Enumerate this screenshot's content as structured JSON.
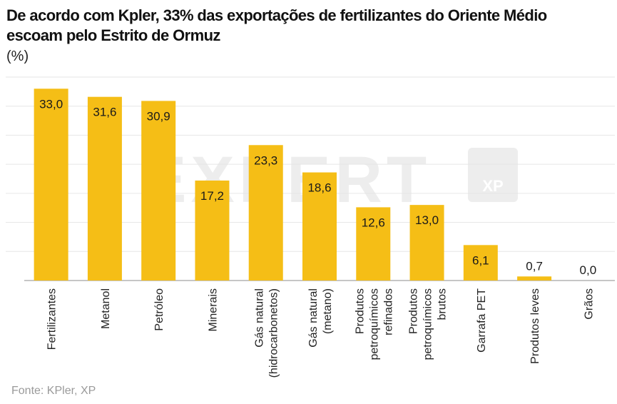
{
  "header": {
    "title": "De acordo com Kpler, 33% das exportações de fertilizantes do Oriente Médio escoam pelo Estrito de Ormuz",
    "unit": "(%)"
  },
  "footer": {
    "source": "Fonte: KPler, XP"
  },
  "watermark": {
    "text": "EXPERT XP"
  },
  "colors": {
    "bar": "#F5BE16",
    "grid": "#E6E6E6",
    "axis": "#8C8C8C",
    "watermark": "#EDEDED"
  },
  "chart_data": {
    "type": "bar",
    "title": "De acordo com Kpler, 33% das exportações de fertilizantes do Oriente Médio escoam pelo Estrito de Ormuz",
    "ylabel": "(%)",
    "xlabel": "",
    "ylim": [
      0,
      35
    ],
    "grid": true,
    "categories": [
      [
        "Fertilizantes"
      ],
      [
        "Metanol"
      ],
      [
        "Petróleo"
      ],
      [
        "Minerais"
      ],
      [
        "Gás natural",
        "(hidrocarbonetos)"
      ],
      [
        "Gás natural",
        "(metano)"
      ],
      [
        "Produtos",
        "petroquímicos",
        "refinados"
      ],
      [
        "Produtos",
        "petroquímicos",
        "brutos"
      ],
      [
        "Garrafa PET"
      ],
      [
        "Produtos leves"
      ],
      [
        "Grãos"
      ]
    ],
    "values": [
      33.0,
      31.6,
      30.9,
      17.2,
      23.3,
      18.6,
      12.6,
      13.0,
      6.1,
      0.7,
      0.0
    ],
    "data_labels": [
      "33,0",
      "31,6",
      "30,9",
      "17,2",
      "23,3",
      "18,6",
      "12,6",
      "13,0",
      "6,1",
      "0,7",
      "0,0"
    ]
  }
}
